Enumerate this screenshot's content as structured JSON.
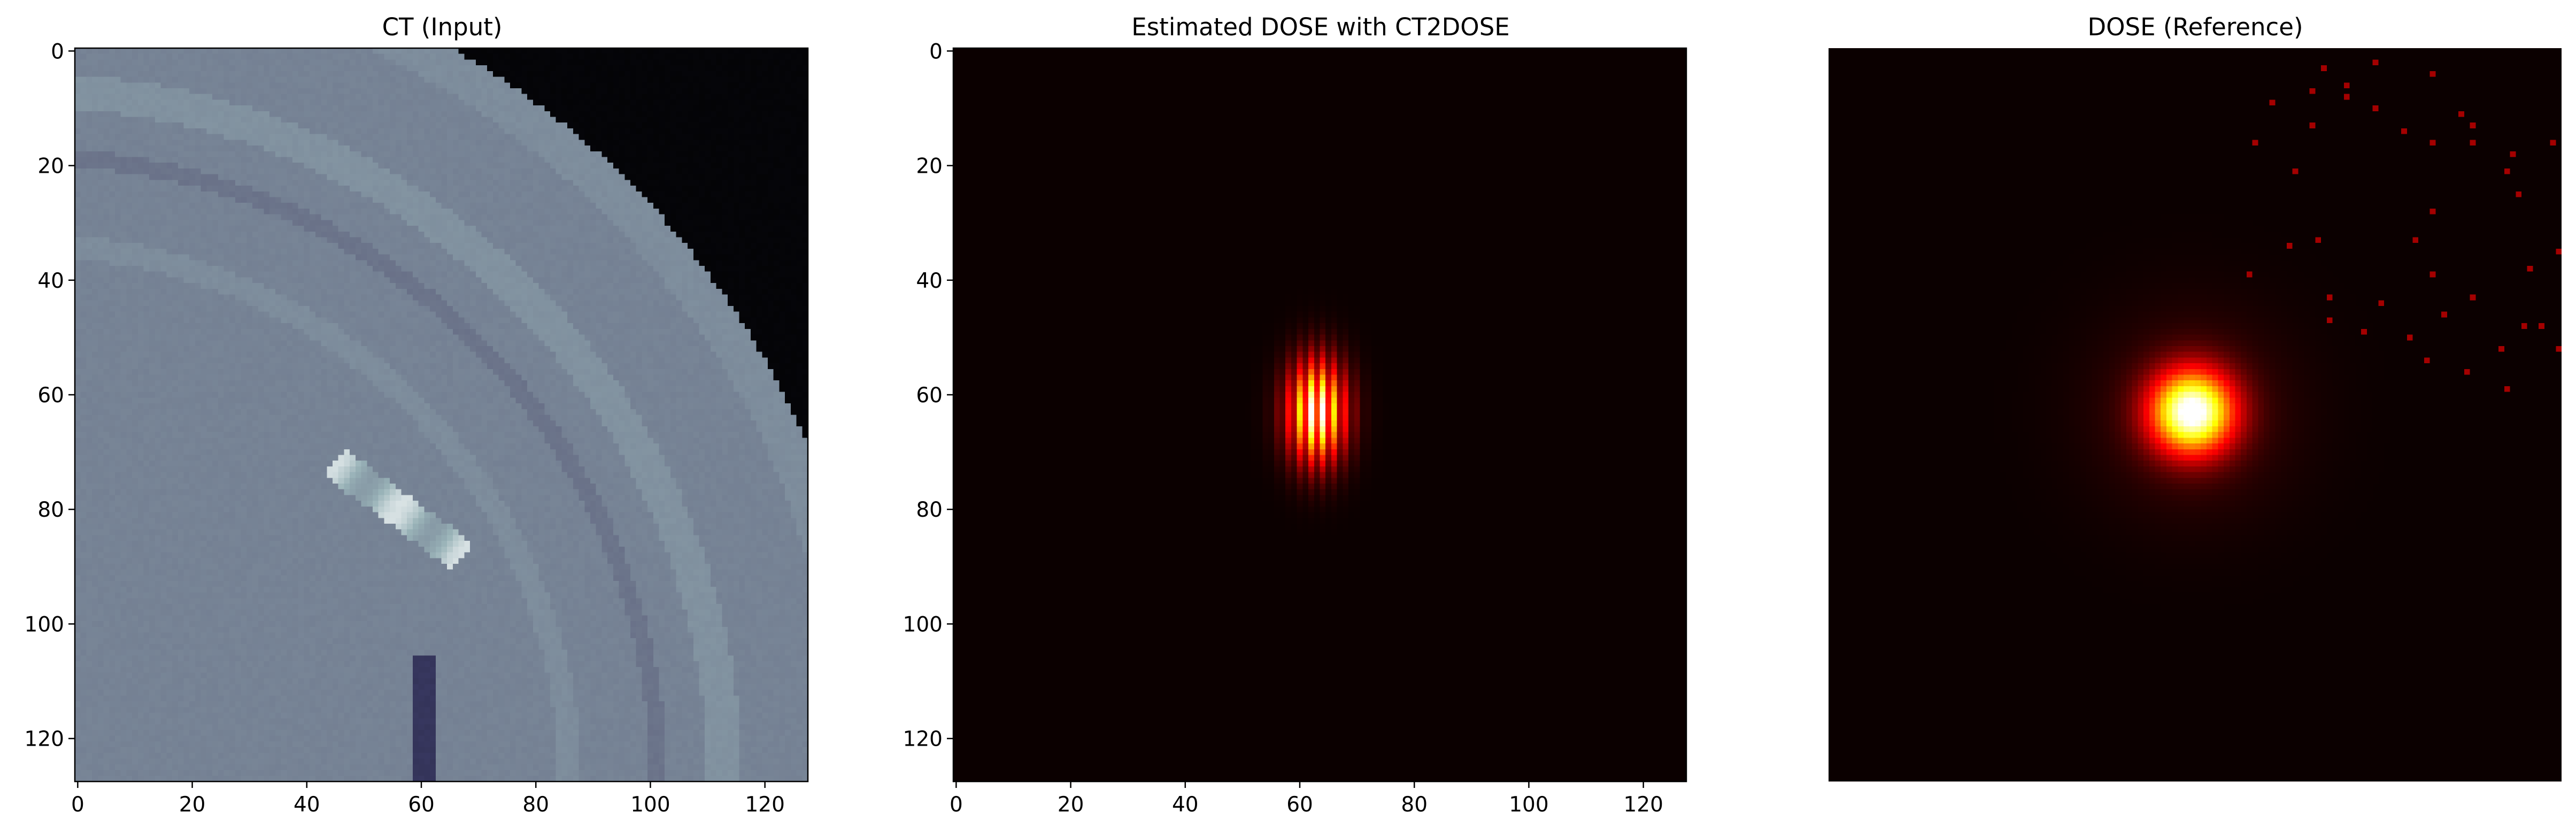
{
  "chart_data": [
    {
      "type": "heatmap",
      "title": "CT (Input)",
      "colormap": "bone",
      "xlim": [
        0,
        127
      ],
      "ylim": [
        127,
        0
      ],
      "xticks": [
        0,
        20,
        40,
        60,
        80,
        100,
        120
      ],
      "yticks": [
        0,
        20,
        40,
        60,
        80,
        100,
        120
      ],
      "show_axes": true,
      "description_features": {
        "background": "dark outside curved boundary (upper right)",
        "bright_streak_center": [
          55,
          80
        ]
      }
    },
    {
      "type": "heatmap",
      "title": "Estimated DOSE with CT2DOSE",
      "colormap": "hot",
      "xlim": [
        0,
        127
      ],
      "ylim": [
        127,
        0
      ],
      "xticks": [
        0,
        20,
        40,
        60,
        80,
        100,
        120
      ],
      "yticks": [
        0,
        20,
        40,
        60,
        80,
        100,
        120
      ],
      "show_axes": true,
      "hotspot": {
        "center": [
          63,
          63
        ],
        "sigma_x": 3.5,
        "sigma_y": 6,
        "striped": true
      }
    },
    {
      "type": "heatmap",
      "title": "DOSE (Reference)",
      "colormap": "hot",
      "xlim": [
        0,
        127
      ],
      "ylim": [
        127,
        0
      ],
      "show_axes": false,
      "hotspot": {
        "center": [
          63,
          63
        ],
        "radius": 5
      }
    }
  ],
  "colors": {
    "ct_dark": "#05070a",
    "ct_tissue": "#8f9fa5",
    "dose_background": "#0b0000",
    "dose_peak": "#ffffd8"
  }
}
